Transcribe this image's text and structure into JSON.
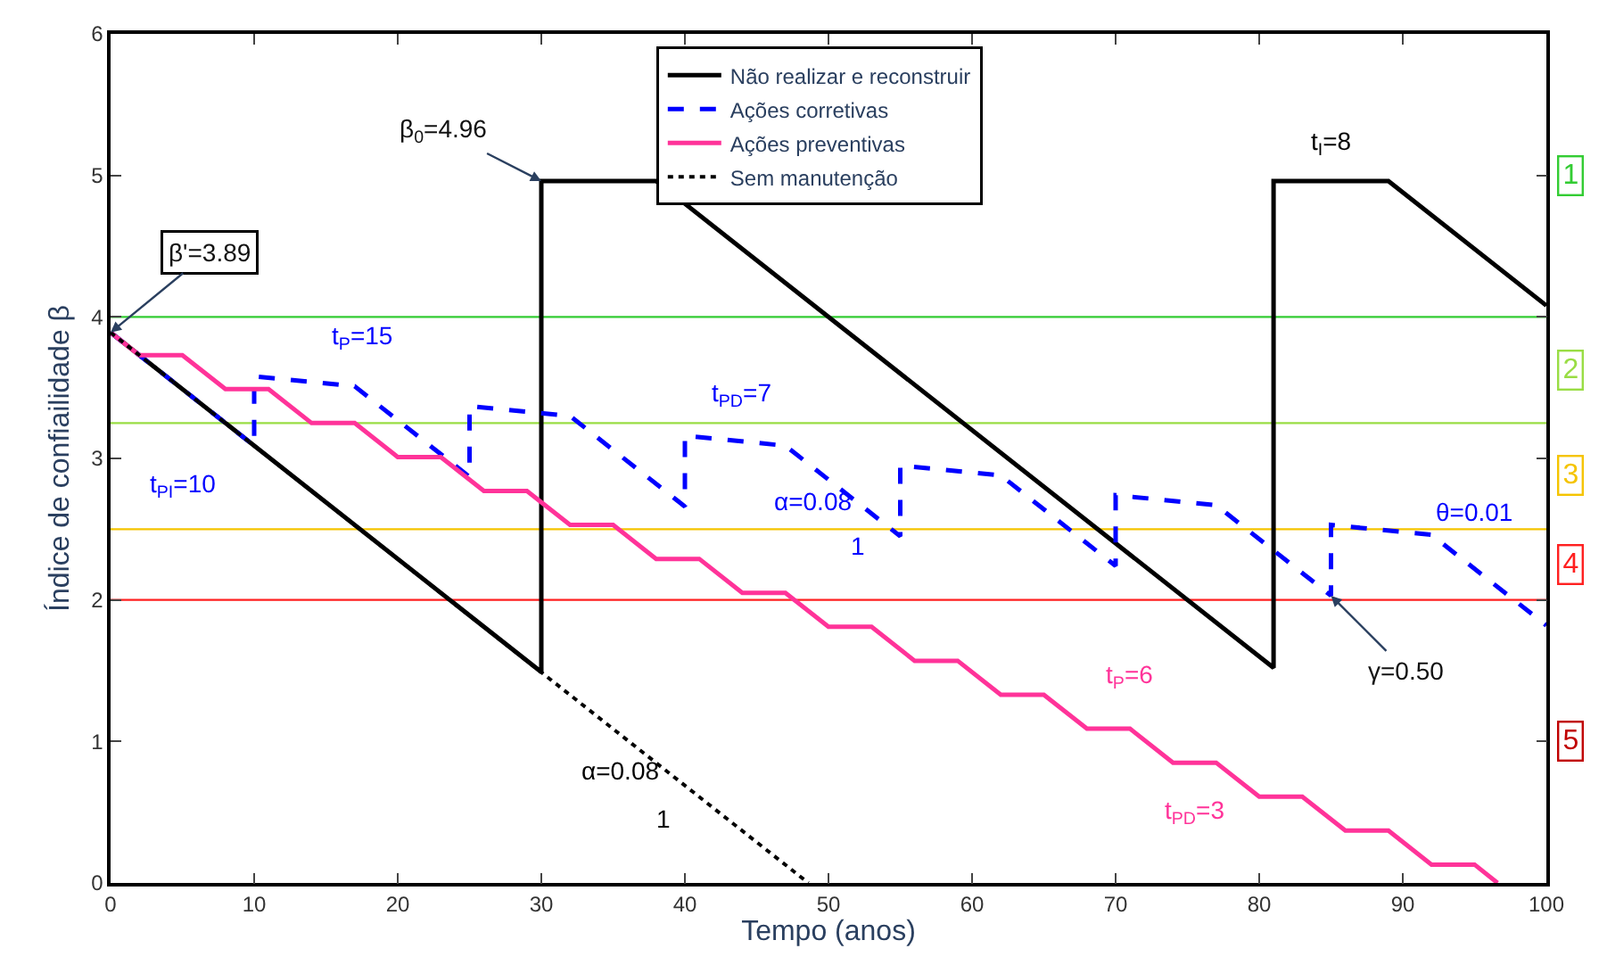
{
  "chart_data": {
    "type": "line",
    "xlabel": "Tempo (anos)",
    "ylabel": "Índice de confiailidade β",
    "xlim": [
      0,
      100
    ],
    "xticks": [
      0,
      10,
      20,
      30,
      40,
      50,
      60,
      70,
      80,
      90,
      100
    ],
    "ylim": [
      0,
      6
    ],
    "yticks": [
      0,
      1,
      2,
      3,
      4,
      5,
      6
    ],
    "grid": false,
    "legend": "top",
    "series": [
      {
        "name": "Não realizar e reconstruir",
        "color": "#000000",
        "line_style": "solid",
        "x": [
          0,
          30,
          30,
          38,
          81,
          81,
          89,
          100
        ],
        "values": [
          3.89,
          1.49,
          4.96,
          4.96,
          1.52,
          4.96,
          4.96,
          4.08
        ]
      },
      {
        "name": "Ações corretivas",
        "color": "#0000ff",
        "line_style": "dashed",
        "x": [
          0,
          10,
          10,
          17,
          25,
          25,
          32,
          40,
          40,
          47,
          55,
          55,
          62,
          70,
          70,
          77,
          85,
          85,
          92,
          100
        ],
        "values": [
          3.89,
          3.09,
          3.58,
          3.51,
          2.87,
          3.37,
          3.3,
          2.66,
          3.16,
          3.09,
          2.45,
          2.95,
          2.88,
          2.24,
          2.74,
          2.67,
          2.03,
          2.53,
          2.46,
          1.82
        ]
      },
      {
        "name": "Ações preventivas",
        "color": "#ff3399",
        "line_style": "solid",
        "x": [
          0,
          2,
          5,
          8,
          11,
          14,
          17,
          20,
          23,
          26,
          29,
          32,
          35,
          38,
          41,
          44,
          47,
          50,
          53,
          56,
          59,
          62,
          65,
          68,
          71,
          74,
          77,
          80,
          83,
          86,
          89,
          92,
          95,
          96.6
        ],
        "values": [
          3.89,
          3.73,
          3.73,
          3.49,
          3.49,
          3.25,
          3.25,
          3.01,
          3.01,
          2.77,
          2.77,
          2.53,
          2.53,
          2.29,
          2.29,
          2.05,
          2.05,
          1.81,
          1.81,
          1.57,
          1.57,
          1.33,
          1.33,
          1.09,
          1.09,
          0.85,
          0.85,
          0.61,
          0.61,
          0.37,
          0.37,
          0.13,
          0.13,
          0
        ]
      },
      {
        "name": "Sem manutenção",
        "color": "#000000",
        "line_style": "dotted",
        "x": [
          0,
          48.6
        ],
        "values": [
          3.89,
          0
        ]
      }
    ],
    "ref_lines": [
      {
        "axis": "y",
        "value": 4,
        "color": "#33cc33"
      },
      {
        "axis": "y",
        "value": 3.25,
        "color": "#99dd44"
      },
      {
        "axis": "y",
        "value": 2.5,
        "color": "#f5c400"
      },
      {
        "axis": "y",
        "value": 2,
        "color": "#ff2020"
      }
    ],
    "annotations": [
      {
        "text": "β'=3.89",
        "x": 0,
        "y": 3.89
      },
      {
        "text": "β$_{0}$=4.96",
        "x": 30,
        "y": 4.96
      },
      "t$_{I}$=8",
      "t$_{P}$=15",
      "t$_{PD}$=7",
      "t$_{PI}$=10",
      "α=0.08",
      "1",
      "θ=0.01",
      {
        "text": "γ=0.50",
        "x": 85,
        "y": 2.03
      },
      "t$_{P}$=6",
      "t$_{PD}$=3",
      "α=0.08",
      "1",
      "1",
      "2",
      "3",
      "4",
      "5"
    ]
  }
}
